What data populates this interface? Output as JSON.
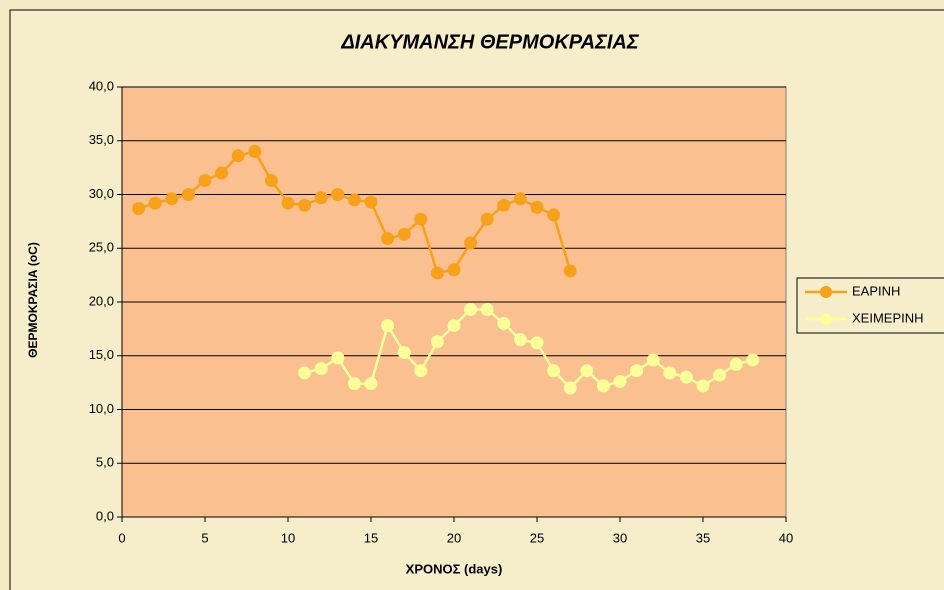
{
  "chart_data": {
    "type": "line",
    "title": "ΔΙΑΚΥΜΑΝΣΗ ΘΕΡΜΟΚΡΑΣΙΑΣ",
    "xlabel": "ΧΡΟΝΟΣ (days)",
    "ylabel": "ΘΕΡΜΟΚΡΑΣΙΑ (oC)",
    "xlim": [
      0,
      40
    ],
    "xticks": [
      0,
      5,
      10,
      15,
      20,
      25,
      30,
      35,
      40
    ],
    "ylim": [
      0,
      40
    ],
    "yticks": [
      {
        "value": 0,
        "label": "0,0"
      },
      {
        "value": 5,
        "label": "5,0"
      },
      {
        "value": 10,
        "label": "10,0"
      },
      {
        "value": 15,
        "label": "15,0"
      },
      {
        "value": 20,
        "label": "20,0"
      },
      {
        "value": 25,
        "label": "25,0"
      },
      {
        "value": 30,
        "label": "30,0"
      },
      {
        "value": 35,
        "label": "35,0"
      },
      {
        "value": 40,
        "label": "40,0"
      }
    ],
    "grid": true,
    "legend": "right",
    "plot_color": "#fac090",
    "series": [
      {
        "name": "ΕΑΡΙΝΗ",
        "color": "#f7a11a",
        "x": [
          1,
          2,
          3,
          4,
          5,
          6,
          7,
          8,
          9,
          10,
          11,
          12,
          13,
          14,
          15,
          16,
          17,
          18,
          19,
          20,
          21,
          22,
          23,
          24,
          25,
          26,
          27
        ],
        "values": [
          28.7,
          29.2,
          29.6,
          30.0,
          31.3,
          32.0,
          33.6,
          34.0,
          31.3,
          29.2,
          29.0,
          29.7,
          30.0,
          29.5,
          29.3,
          25.9,
          26.3,
          27.7,
          22.7,
          23.0,
          25.5,
          27.7,
          29.0,
          29.6,
          28.8,
          28.1,
          22.9
        ]
      },
      {
        "name": "ΧΕΙΜΕΡΙΝΗ",
        "color": "#ffff99",
        "x": [
          11,
          12,
          13,
          14,
          15,
          16,
          17,
          18,
          19,
          20,
          21,
          22,
          23,
          24,
          25,
          26,
          27,
          28,
          29,
          30,
          31,
          32,
          33,
          34,
          35,
          36,
          37,
          38
        ],
        "values": [
          13.4,
          13.8,
          14.8,
          12.4,
          12.4,
          17.8,
          15.3,
          13.6,
          16.3,
          17.8,
          19.3,
          19.3,
          18.0,
          16.5,
          16.2,
          13.6,
          12.0,
          13.6,
          12.2,
          12.6,
          13.6,
          14.6,
          13.4,
          13.0,
          12.2,
          13.2,
          14.2,
          14.6
        ]
      }
    ]
  }
}
